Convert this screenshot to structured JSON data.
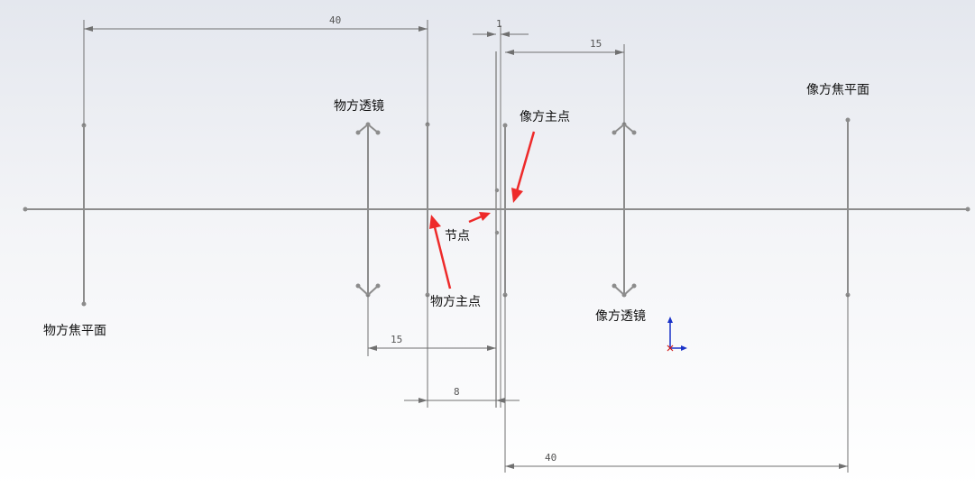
{
  "labels": {
    "object_focal_plane": "物方焦平面",
    "object_lens": "物方透镜",
    "object_principal_point": "物方主点",
    "image_principal_point": "像方主点",
    "nodal_point": "节点",
    "image_lens": "像方透镜",
    "image_focal_plane": "像方焦平面"
  },
  "dimensions": {
    "object_focal_to_object_principal": "40",
    "nodal_offset": "1",
    "image_lens_to_image_principal": "15",
    "object_lens_to_nodal": "15",
    "object_principal_to_nodal": "8",
    "image_principal_to_image_focal": "40"
  },
  "colors": {
    "geometry": "#8c8c8c",
    "annotation_arrow": "#ee2a2a",
    "dimension": "#707070",
    "triad_blue": "#1a32c8",
    "triad_red": "#d01818"
  }
}
